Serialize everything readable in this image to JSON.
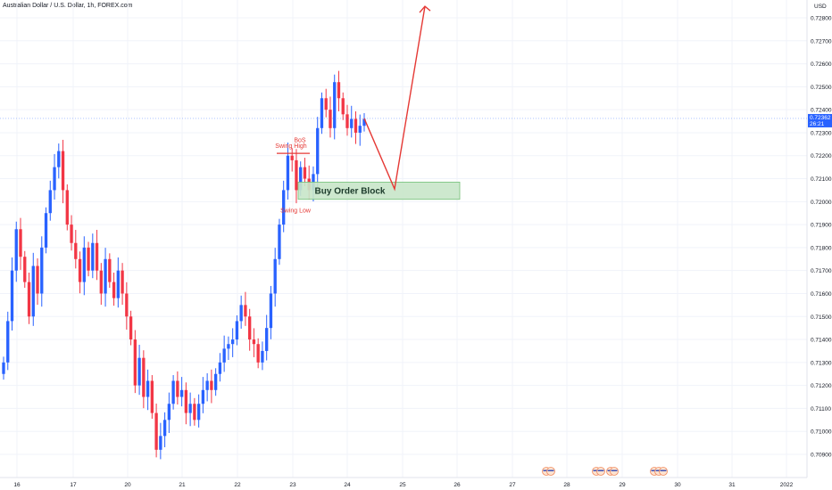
{
  "header": {
    "title": "Australian Dollar / U.S. Dollar, 1h, FOREX.com"
  },
  "chart_data": {
    "type": "candlestick",
    "currency": "USD",
    "ylim": [
      0.7084,
      0.729
    ],
    "y_ticks": [
      "0.72800",
      "0.72700",
      "0.72600",
      "0.72500",
      "0.72400",
      "0.72300",
      "0.72200",
      "0.72100",
      "0.72000",
      "0.71900",
      "0.71800",
      "0.71700",
      "0.71600",
      "0.71500",
      "0.71400",
      "0.71300",
      "0.71200",
      "0.71100",
      "0.71000",
      "0.70900"
    ],
    "x_ticks": [
      "16",
      "17",
      "20",
      "21",
      "22",
      "23",
      "24",
      "25",
      "26",
      "27",
      "28",
      "29",
      "30",
      "31",
      "2022"
    ],
    "current_price": "0.72362",
    "current_price_sub": "26:21",
    "colors": {
      "up": "#2962ff",
      "down": "#f23645",
      "accent": "#e53935",
      "order_block_fill": "#c8e6c9",
      "order_block_stroke": "#66bb6a"
    },
    "closes": [
      0.713,
      0.7148,
      0.717,
      0.7188,
      0.7176,
      0.7165,
      0.715,
      0.7172,
      0.716,
      0.718,
      0.7195,
      0.7205,
      0.7215,
      0.7222,
      0.7205,
      0.719,
      0.7182,
      0.7175,
      0.7165,
      0.718,
      0.717,
      0.7182,
      0.717,
      0.716,
      0.7175,
      0.7165,
      0.7158,
      0.717,
      0.716,
      0.715,
      0.714,
      0.712,
      0.7132,
      0.7115,
      0.7122,
      0.7108,
      0.7092,
      0.7098,
      0.7105,
      0.7112,
      0.7122,
      0.7115,
      0.7118,
      0.7108,
      0.7112,
      0.7105,
      0.7112,
      0.7118,
      0.7122,
      0.7118,
      0.7125,
      0.713,
      0.7136,
      0.7138,
      0.714,
      0.7148,
      0.7155,
      0.715,
      0.714,
      0.7138,
      0.713,
      0.7135,
      0.7145,
      0.716,
      0.7175,
      0.719,
      0.7205,
      0.722,
      0.7218,
      0.7205,
      0.7215,
      0.721,
      0.7205,
      0.7212,
      0.7232,
      0.7245,
      0.724,
      0.7232,
      0.7252,
      0.7245,
      0.7238,
      0.7232,
      0.7236,
      0.723,
      0.7233,
      0.7236
    ],
    "order_block": {
      "label": "Buy Order Block",
      "top": 0.72085,
      "bottom": 0.7201
    },
    "annotations": [
      {
        "text": "BoS",
        "price": 0.72267
      },
      {
        "text": "Swing High",
        "price": 0.72245
      },
      {
        "text": "Swing Low",
        "price": 0.7196
      }
    ],
    "projection": [
      {
        "price": 0.72362
      },
      {
        "price": 0.72055
      },
      {
        "price": 0.7285
      }
    ],
    "grid": true,
    "legend": "none"
  }
}
